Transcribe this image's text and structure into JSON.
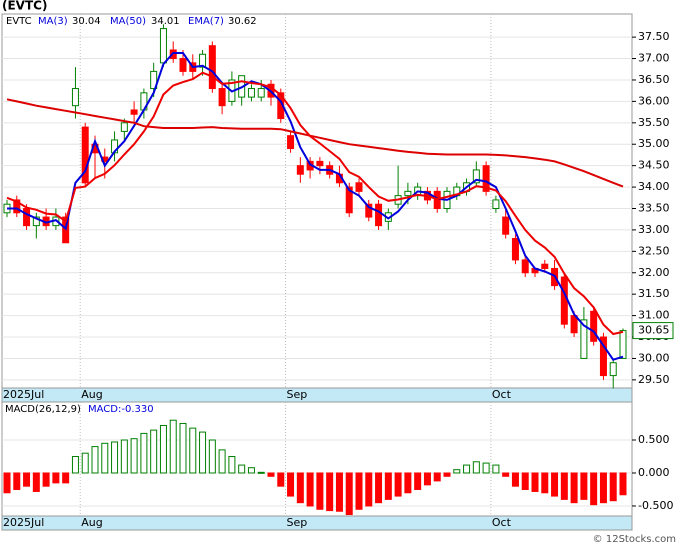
{
  "chart_data": {
    "type": "candlestick",
    "title": "(EVTC)",
    "symbol": "EVTC",
    "categories": [
      "2025Jul",
      null,
      null,
      null,
      null,
      null,
      null,
      null,
      "Aug",
      null,
      null,
      null,
      null,
      null,
      null,
      null,
      null,
      null,
      null,
      null,
      null,
      null,
      null,
      null,
      null,
      null,
      null,
      null,
      null,
      "Sep",
      null,
      null,
      null,
      null,
      null,
      null,
      null,
      null,
      null,
      null,
      null,
      null,
      null,
      null,
      null,
      null,
      null,
      null,
      null,
      null,
      "Oct",
      null,
      null,
      null,
      null,
      null,
      null,
      null,
      null,
      null,
      null,
      null,
      null,
      null
    ],
    "ohlc": {
      "up_color": "#008000",
      "down_color": "#ff0000",
      "open": [
        33.4,
        33.7,
        33.5,
        33.1,
        33.3,
        33.1,
        33.3,
        35.9,
        35.4,
        35.0,
        34.7,
        34.8,
        35.3,
        35.8,
        35.8,
        36.3,
        36.9,
        37.2,
        37.0,
        36.9,
        36.8,
        37.3,
        36.3,
        36.0,
        36.1,
        36.1,
        36.1,
        36.4,
        36.2,
        35.2,
        34.5,
        34.6,
        34.6,
        34.5,
        34.3,
        34.0,
        34.1,
        33.6,
        33.6,
        33.2,
        33.6,
        33.8,
        33.8,
        33.9,
        33.9,
        33.5,
        33.8,
        33.9,
        34.1,
        34.5,
        33.5,
        33.3,
        32.8,
        32.3,
        32.1,
        32.2,
        32.1,
        31.9,
        31.0,
        30.0,
        31.1,
        30.5,
        29.6,
        30.0
      ],
      "high": [
        33.7,
        33.8,
        33.6,
        33.4,
        33.5,
        33.5,
        33.4,
        36.8,
        35.5,
        35.2,
        34.9,
        35.3,
        35.6,
        36.0,
        36.3,
        36.9,
        37.8,
        37.4,
        37.2,
        37.1,
        37.2,
        37.4,
        36.4,
        36.7,
        36.6,
        36.4,
        36.5,
        36.5,
        36.3,
        35.3,
        34.7,
        34.7,
        34.7,
        34.6,
        34.5,
        34.1,
        34.2,
        33.7,
        33.7,
        33.5,
        34.5,
        34.1,
        34.1,
        34.0,
        34.0,
        34.0,
        34.1,
        34.2,
        34.6,
        34.6,
        33.8,
        33.5,
        32.9,
        32.4,
        32.1,
        32.3,
        32.3,
        32.0,
        31.1,
        31.2,
        31.2,
        30.6,
        30.0,
        30.7
      ],
      "low": [
        33.3,
        33.3,
        33.0,
        32.8,
        33.0,
        33.0,
        32.7,
        35.6,
        34.0,
        34.2,
        34.2,
        34.6,
        35.1,
        35.5,
        35.6,
        36.1,
        36.8,
        36.9,
        36.6,
        36.5,
        36.6,
        36.2,
        35.7,
        35.9,
        35.9,
        36.0,
        36.0,
        35.9,
        35.5,
        34.8,
        34.1,
        34.2,
        34.3,
        34.2,
        34.0,
        33.3,
        33.8,
        33.2,
        33.0,
        33.0,
        33.5,
        33.6,
        33.7,
        33.6,
        33.4,
        33.4,
        33.7,
        33.8,
        34.0,
        33.8,
        33.4,
        32.8,
        32.2,
        31.9,
        31.9,
        32.0,
        31.6,
        30.7,
        30.5,
        30.0,
        30.3,
        29.5,
        29.3,
        30.0
      ],
      "close": [
        33.6,
        33.4,
        33.1,
        33.3,
        33.1,
        33.3,
        32.7,
        36.3,
        34.1,
        34.8,
        34.6,
        35.1,
        35.5,
        35.7,
        36.2,
        36.7,
        37.7,
        37.0,
        36.7,
        36.7,
        37.1,
        36.3,
        35.9,
        36.5,
        36.6,
        36.3,
        36.3,
        36.1,
        35.6,
        34.9,
        34.3,
        34.4,
        34.5,
        34.3,
        34.1,
        33.4,
        33.9,
        33.3,
        33.1,
        33.4,
        33.8,
        33.9,
        34.0,
        33.7,
        33.5,
        33.9,
        34.0,
        34.1,
        34.4,
        33.9,
        33.7,
        32.9,
        32.3,
        32.0,
        32.0,
        32.1,
        31.7,
        30.8,
        30.6,
        30.9,
        30.4,
        29.6,
        29.9,
        30.65
      ]
    },
    "series": [
      {
        "name": "MA(3)",
        "color": "#0000dd",
        "values": [
          33.5,
          33.5,
          33.37,
          33.27,
          33.17,
          33.23,
          33.03,
          34.1,
          34.37,
          35.07,
          34.5,
          34.83,
          35.07,
          35.43,
          35.8,
          36.2,
          36.87,
          37.13,
          37.13,
          36.8,
          36.83,
          36.7,
          36.43,
          36.23,
          36.33,
          36.47,
          36.4,
          36.23,
          36.0,
          35.53,
          34.93,
          34.53,
          34.4,
          34.4,
          34.3,
          33.93,
          33.8,
          33.53,
          33.43,
          33.27,
          33.43,
          33.7,
          33.9,
          33.87,
          33.73,
          33.7,
          33.8,
          34.0,
          34.17,
          34.13,
          34.0,
          33.5,
          32.97,
          32.4,
          32.1,
          32.03,
          31.93,
          31.53,
          31.03,
          30.77,
          30.63,
          30.3,
          29.97,
          30.04
        ]
      },
      {
        "name": "MA(50)",
        "color": "#dd0000",
        "values": [
          36.05,
          36.0,
          35.95,
          35.9,
          35.86,
          35.82,
          35.78,
          35.74,
          35.7,
          35.66,
          35.62,
          35.58,
          35.54,
          35.5,
          35.42,
          35.4,
          35.38,
          35.38,
          35.38,
          35.38,
          35.39,
          35.4,
          35.38,
          35.37,
          35.36,
          35.36,
          35.36,
          35.36,
          35.35,
          35.3,
          35.25,
          35.2,
          35.15,
          35.1,
          35.05,
          35.0,
          34.97,
          34.94,
          34.91,
          34.88,
          34.85,
          34.82,
          34.8,
          34.78,
          34.77,
          34.76,
          34.76,
          34.76,
          34.76,
          34.76,
          34.75,
          34.74,
          34.72,
          34.7,
          34.67,
          34.64,
          34.6,
          34.53,
          34.45,
          34.37,
          34.28,
          34.19,
          34.1,
          34.01
        ]
      },
      {
        "name": "EMA(7)",
        "color": "#ee0000",
        "values": [
          33.75,
          33.66,
          33.52,
          33.47,
          33.38,
          33.36,
          33.2,
          33.98,
          34.01,
          34.21,
          34.31,
          34.51,
          34.76,
          35.0,
          35.3,
          35.65,
          36.16,
          36.37,
          36.45,
          36.52,
          36.67,
          36.58,
          36.41,
          36.43,
          36.47,
          36.43,
          36.4,
          36.33,
          36.15,
          35.84,
          35.45,
          35.19,
          35.02,
          34.84,
          34.66,
          34.35,
          34.24,
          34.0,
          33.78,
          33.68,
          33.71,
          33.76,
          33.82,
          33.79,
          33.72,
          33.77,
          33.83,
          33.9,
          34.02,
          33.99,
          33.92,
          33.67,
          33.33,
          33.0,
          32.75,
          32.59,
          32.37,
          31.98,
          31.64,
          31.45,
          31.19,
          30.79,
          30.57,
          30.62
        ]
      }
    ],
    "ylim": [
      29.31,
      38.04
    ],
    "yticks": [
      {
        "value": 29.5,
        "label": "29.50"
      },
      {
        "value": 30,
        "label": "30.00"
      },
      {
        "value": 30.5,
        "label": "30.50"
      },
      {
        "value": 31,
        "label": "31.00"
      },
      {
        "value": 31.5,
        "label": "31.50"
      },
      {
        "value": 32,
        "label": "32.00"
      },
      {
        "value": 32.5,
        "label": "32.50"
      },
      {
        "value": 33,
        "label": "33.00"
      },
      {
        "value": 33.5,
        "label": "33.50"
      },
      {
        "value": 34,
        "label": "34.00"
      },
      {
        "value": 34.5,
        "label": "34.50"
      },
      {
        "value": 35,
        "label": "35.00"
      },
      {
        "value": 35.5,
        "label": "35.50"
      },
      {
        "value": 36,
        "label": "36.00"
      },
      {
        "value": 36.5,
        "label": "36.50"
      },
      {
        "value": 37,
        "label": "37.00"
      },
      {
        "value": 37.5,
        "label": "37.50"
      }
    ],
    "grid": true,
    "macd": {
      "name": "MACD(26,12,9)",
      "current_label": "MACD:-0.330",
      "up_color": "#008000",
      "down_color": "#ff0000",
      "values": [
        -0.3,
        -0.25,
        -0.2,
        -0.28,
        -0.2,
        -0.15,
        -0.15,
        0.25,
        0.3,
        0.4,
        0.45,
        0.47,
        0.5,
        0.52,
        0.6,
        0.65,
        0.72,
        0.8,
        0.75,
        0.68,
        0.62,
        0.5,
        0.35,
        0.25,
        0.12,
        0.08,
        0.01,
        -0.05,
        -0.2,
        -0.35,
        -0.45,
        -0.5,
        -0.55,
        -0.57,
        -0.58,
        -0.63,
        -0.55,
        -0.5,
        -0.45,
        -0.4,
        -0.35,
        -0.3,
        -0.25,
        -0.18,
        -0.12,
        -0.05,
        0.05,
        0.12,
        0.17,
        0.15,
        0.12,
        -0.05,
        -0.2,
        -0.25,
        -0.28,
        -0.3,
        -0.35,
        -0.4,
        -0.45,
        -0.4,
        -0.48,
        -0.45,
        -0.42,
        -0.33
      ],
      "ylim": [
        -0.652,
        1.076
      ],
      "yticks": [
        {
          "value": -0.5,
          "label": "-0.500"
        },
        {
          "value": 0,
          "label": "0.000"
        },
        {
          "value": 0.5,
          "label": "0.500"
        }
      ]
    },
    "footer": "© 12Stocks.com"
  }
}
